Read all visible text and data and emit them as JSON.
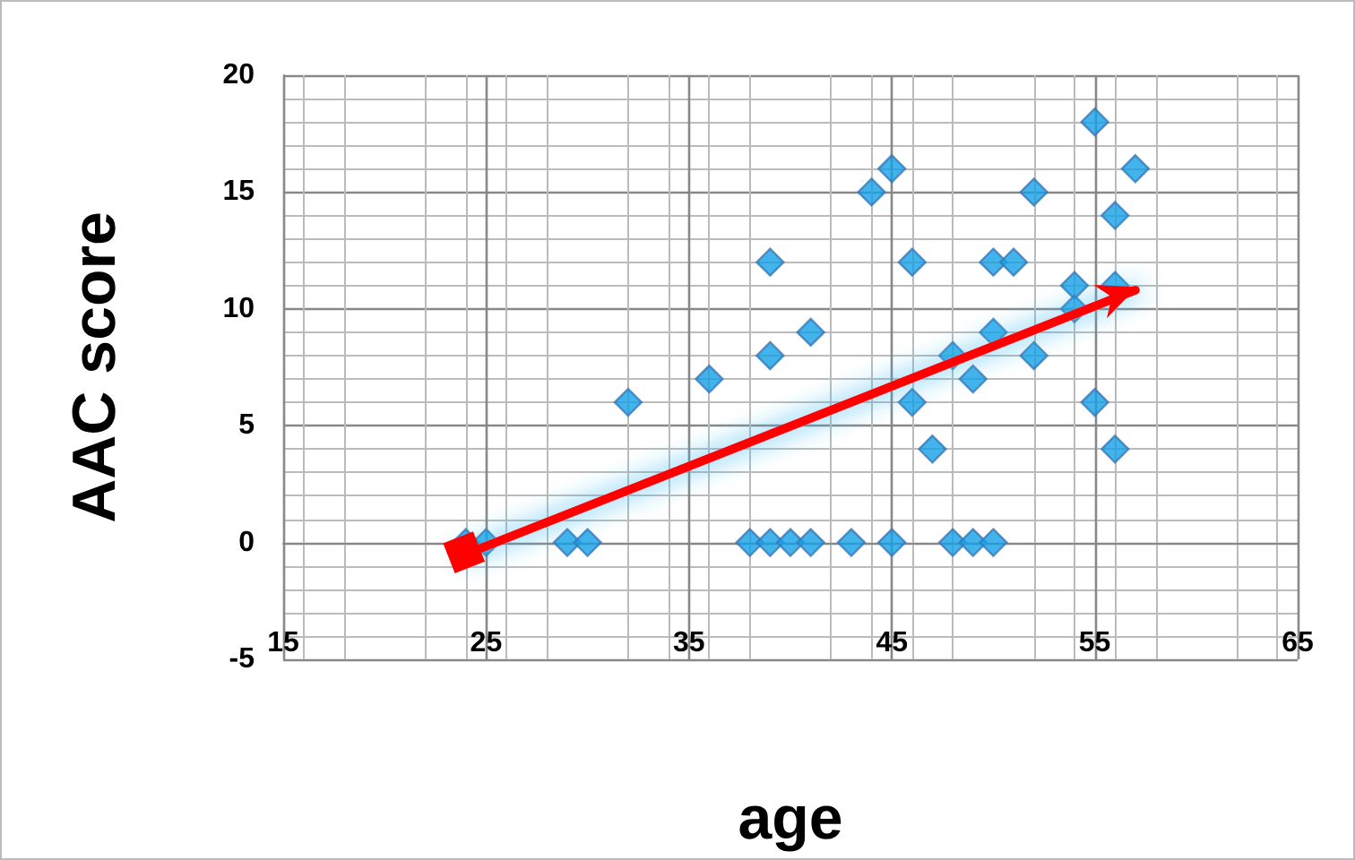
{
  "chart_data": {
    "type": "scatter",
    "xlabel": "age",
    "ylabel": "AAC score",
    "xlim": [
      15,
      65
    ],
    "ylim": [
      -5,
      20
    ],
    "xticks": [
      15,
      25,
      35,
      45,
      55,
      65
    ],
    "yticks": [
      -5,
      0,
      5,
      10,
      15,
      20
    ],
    "grid": true,
    "marker": "diamond",
    "series": [
      {
        "color": "#14a0e6",
        "x": [
          24,
          25,
          29,
          30,
          38,
          39,
          40,
          41,
          43,
          45,
          48,
          49,
          50,
          32,
          36,
          39,
          39,
          41,
          44,
          45,
          46,
          46,
          47,
          48,
          49,
          50,
          50,
          51,
          52,
          52,
          54,
          54,
          55,
          55,
          56,
          56,
          56,
          57
        ],
        "values": [
          0,
          0,
          0,
          0,
          0,
          0,
          0,
          0,
          0,
          0,
          0,
          0,
          0,
          6,
          7,
          12,
          8,
          9,
          15,
          16,
          12,
          6,
          4,
          8,
          7,
          12,
          9,
          12,
          15,
          8,
          11,
          10,
          18,
          6,
          14,
          11,
          4,
          16
        ]
      },
      {
        "type": "line",
        "color": "#ff0000",
        "x": [
          24,
          57
        ],
        "values": [
          -0.5,
          10.8
        ]
      }
    ]
  }
}
